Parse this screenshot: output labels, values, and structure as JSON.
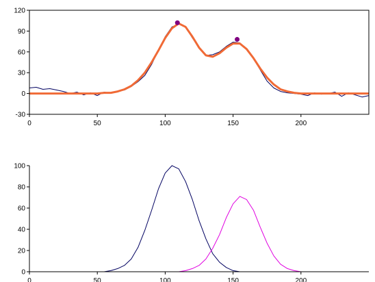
{
  "chart_data": [
    {
      "type": "line",
      "title": "",
      "xlabel": "",
      "ylabel": "",
      "xlim": [
        0,
        250
      ],
      "ylim": [
        -30,
        120
      ],
      "x_ticks": [
        "0",
        "50",
        "100",
        "150",
        "200"
      ],
      "y_ticks": [
        "-30",
        "0",
        "30",
        "60",
        "90",
        "120"
      ],
      "grid": false,
      "legend": "none",
      "series": [
        {
          "role": "noisy",
          "color": "#000060",
          "x": [
            0,
            5,
            10,
            15,
            20,
            25,
            30,
            35,
            40,
            45,
            50,
            55,
            60,
            65,
            70,
            75,
            80,
            85,
            90,
            95,
            100,
            105,
            110,
            115,
            120,
            125,
            130,
            135,
            140,
            145,
            150,
            155,
            160,
            165,
            170,
            175,
            180,
            185,
            190,
            195,
            200,
            205,
            210,
            215,
            220,
            225,
            230,
            235,
            240,
            245,
            250
          ],
          "y": [
            8,
            9,
            6,
            7,
            5,
            3,
            0,
            2,
            -2,
            1,
            -3,
            2,
            1,
            3,
            5,
            10,
            17,
            26,
            42,
            62,
            82,
            96,
            100,
            96,
            80,
            66,
            55,
            56,
            60,
            68,
            74,
            73,
            64,
            50,
            34,
            18,
            8,
            3,
            1,
            0,
            -1,
            -3,
            1,
            -1,
            0,
            2,
            -4,
            1,
            -2,
            -5,
            -3
          ]
        },
        {
          "role": "fit",
          "color": "#f06a36",
          "x": [
            0,
            5,
            10,
            15,
            20,
            25,
            30,
            35,
            40,
            45,
            50,
            55,
            60,
            65,
            70,
            75,
            80,
            85,
            90,
            95,
            100,
            105,
            110,
            115,
            120,
            125,
            130,
            135,
            140,
            145,
            150,
            155,
            160,
            165,
            170,
            175,
            180,
            185,
            190,
            195,
            200,
            205,
            210,
            215,
            220,
            225,
            230,
            235,
            240,
            245,
            250
          ],
          "y": [
            0,
            0,
            0,
            0,
            0,
            0,
            0,
            0,
            0,
            0,
            0,
            1,
            1,
            3,
            6,
            11,
            19,
            30,
            45,
            62,
            80,
            94,
            101,
            96,
            82,
            66,
            55,
            53,
            58,
            66,
            72,
            72,
            64,
            51,
            36,
            23,
            13,
            6,
            3,
            1,
            0,
            0,
            0,
            0,
            0,
            0,
            0,
            0,
            0,
            0,
            0
          ]
        }
      ],
      "peaks": [
        {
          "x": 109,
          "y": 102,
          "color": "#800080"
        },
        {
          "x": 153,
          "y": 78,
          "color": "#800080"
        }
      ]
    },
    {
      "type": "line",
      "title": "",
      "xlabel": "",
      "ylabel": "",
      "xlim": [
        0,
        250
      ],
      "ylim": [
        0,
        100
      ],
      "x_ticks": [
        "0",
        "50",
        "100",
        "150",
        "200"
      ],
      "y_ticks": [
        "0",
        "20",
        "40",
        "60",
        "80",
        "100"
      ],
      "grid": false,
      "legend": "none",
      "series": [
        {
          "role": "component-1",
          "color": "#000060",
          "x": [
            50,
            55,
            60,
            65,
            70,
            75,
            80,
            85,
            90,
            95,
            100,
            105,
            110,
            115,
            120,
            125,
            130,
            135,
            140,
            145,
            150,
            155,
            160
          ],
          "y": [
            0,
            0,
            1,
            3,
            6,
            12,
            23,
            39,
            58,
            78,
            93,
            100,
            97,
            85,
            68,
            48,
            31,
            17,
            9,
            4,
            1,
            0,
            0
          ]
        },
        {
          "role": "component-2",
          "color": "#e000e0",
          "x": [
            110,
            115,
            120,
            125,
            130,
            135,
            140,
            145,
            150,
            155,
            160,
            165,
            170,
            175,
            180,
            185,
            190,
            195,
            200
          ],
          "y": [
            0,
            1,
            3,
            6,
            12,
            22,
            35,
            51,
            64,
            71,
            68,
            58,
            42,
            27,
            15,
            7,
            3,
            1,
            0
          ]
        }
      ]
    }
  ]
}
